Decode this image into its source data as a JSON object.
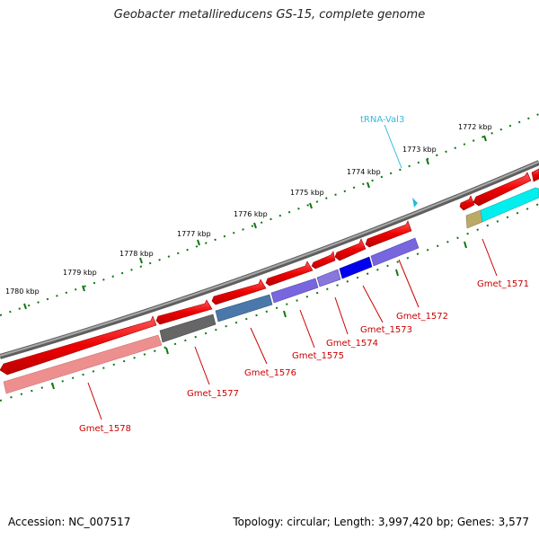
{
  "title": "Geobacter metallireducens GS-15, complete genome",
  "footer": {
    "accession": "Accession: NC_007517",
    "summary": "Topology: circular; Length: 3,997,420 bp; Genes: 3,577"
  },
  "colors": {
    "backbone": "#7a7a7a",
    "tick": "#117711",
    "gene_forward": "#ff0000",
    "gene_label": "#cc0000",
    "trna": "#33ccee"
  },
  "scale_labels": [
    "1772 kbp",
    "1773 kbp",
    "1774 kbp",
    "1775 kbp",
    "1776 kbp",
    "1777 kbp",
    "1778 kbp",
    "1779 kbp",
    "1780 kbp"
  ],
  "gene_labels": [
    "Gmet_1571",
    "Gmet_1572",
    "Gmet_1573",
    "Gmet_1574",
    "Gmet_1575",
    "Gmet_1576",
    "Gmet_1577",
    "Gmet_1578"
  ],
  "trna_label": "tRNA-Val3",
  "legend_icons": {
    "forward_strand": "red-arrow-icon",
    "trna_marker": "cyan-arrowhead-icon"
  }
}
